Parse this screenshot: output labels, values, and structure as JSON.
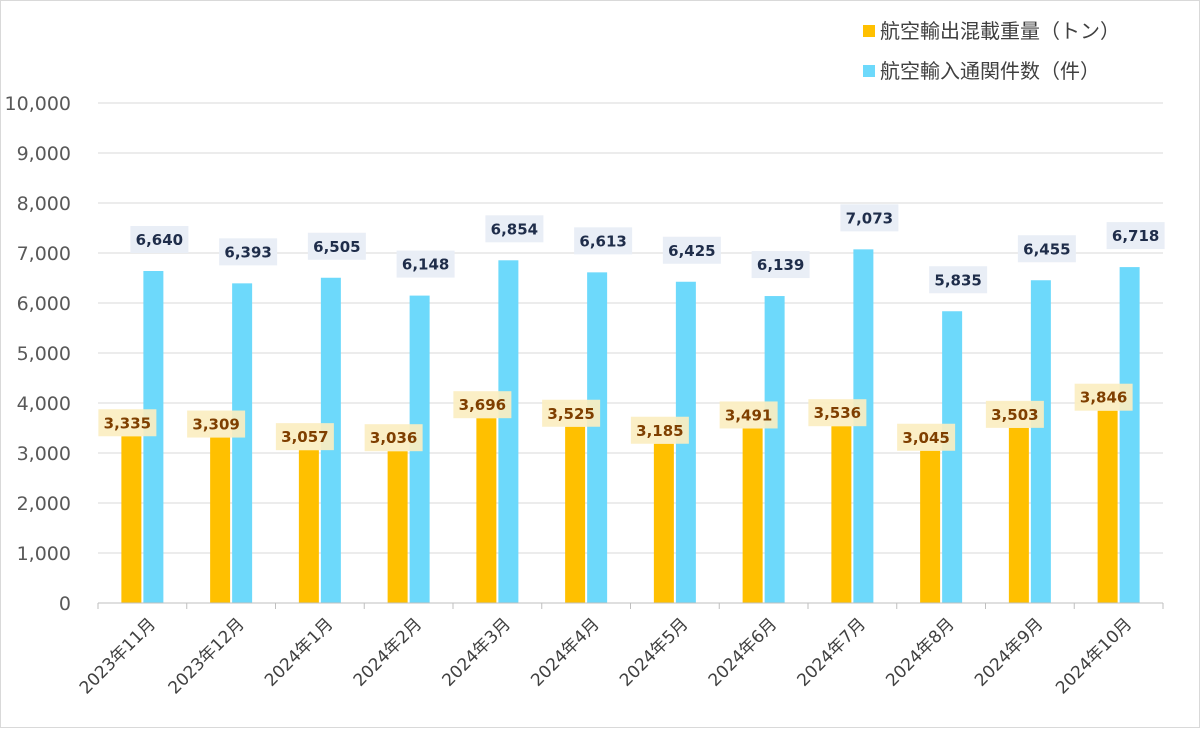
{
  "chart_data": {
    "type": "bar",
    "categories": [
      "2023年11月",
      "2023年12月",
      "2024年1月",
      "2024年2月",
      "2024年3月",
      "2024年4月",
      "2024年5月",
      "2024年6月",
      "2024年7月",
      "2024年8月",
      "2024年9月",
      "2024年10月"
    ],
    "series": [
      {
        "name": "航空輸出混載重量（トン）",
        "color": "#ffc000",
        "label_color": "#7f3f00",
        "label_bg": "#fbeec1",
        "values": [
          3335,
          3309,
          3057,
          3036,
          3696,
          3525,
          3185,
          3491,
          3536,
          3045,
          3503,
          3846
        ],
        "labels": [
          "3,335",
          "3,309",
          "3,057",
          "3,036",
          "3,696",
          "3,525",
          "3,185",
          "3,491",
          "3,536",
          "3,045",
          "3,503",
          "3,846"
        ]
      },
      {
        "name": "航空輸入通関件数（件）",
        "color": "#6dd9fb",
        "label_color": "#1f2d4a",
        "label_bg": "#e9eef6",
        "values": [
          6640,
          6393,
          6505,
          6148,
          6854,
          6613,
          6425,
          6139,
          7073,
          5835,
          6455,
          6718
        ],
        "labels": [
          "6,640",
          "6,393",
          "6,505",
          "6,148",
          "6,854",
          "6,613",
          "6,425",
          "6,139",
          "7,073",
          "5,835",
          "6,455",
          "6,718"
        ]
      }
    ],
    "ylim": [
      0,
      10000
    ],
    "yticks": [
      0,
      1000,
      2000,
      3000,
      4000,
      5000,
      6000,
      7000,
      8000,
      9000,
      10000
    ],
    "ytick_labels": [
      "0",
      "1,000",
      "2,000",
      "3,000",
      "4,000",
      "5,000",
      "6,000",
      "7,000",
      "8,000",
      "9,000",
      "10,000"
    ],
    "grid": true,
    "legend_position": "top-right",
    "title": "",
    "xlabel": "",
    "ylabel": ""
  }
}
